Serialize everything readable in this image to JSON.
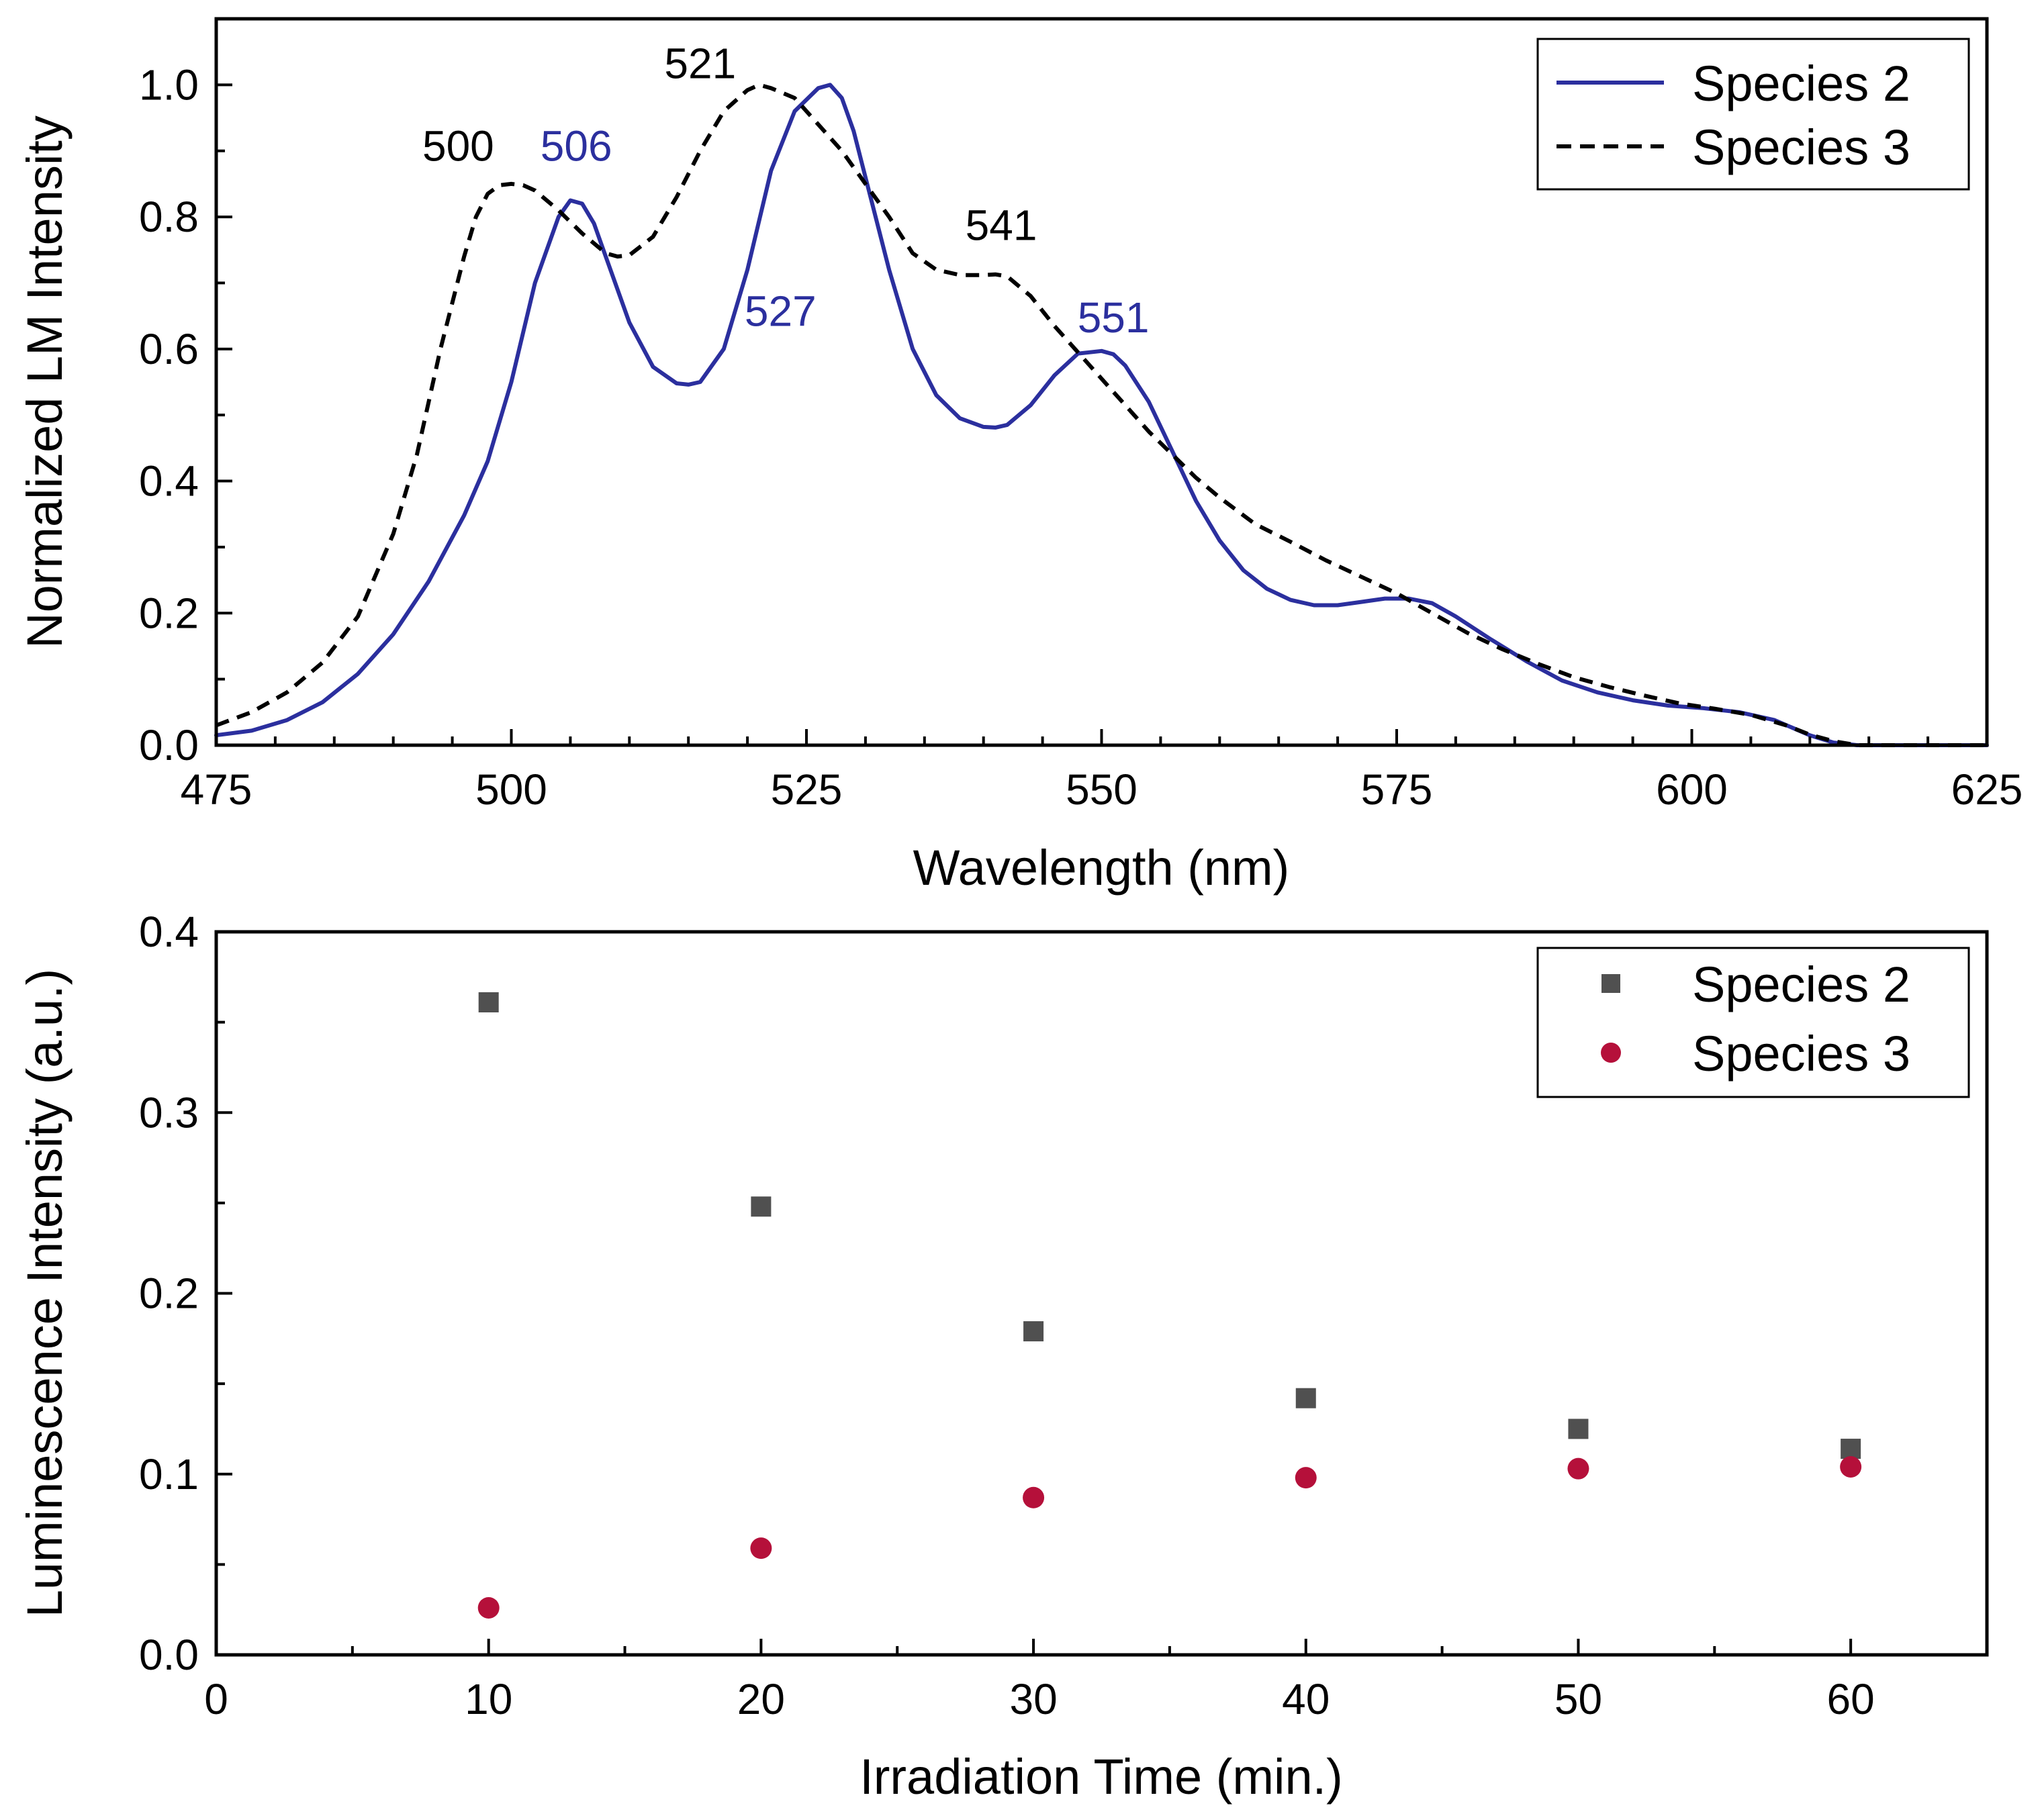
{
  "chart_data": [
    {
      "type": "line",
      "title": "",
      "xlabel": "Wavelength (nm)",
      "ylabel": "Normalized LM Intensity",
      "xlim": [
        475,
        625
      ],
      "ylim": [
        0.0,
        1.1
      ],
      "x_ticks": [
        475,
        500,
        525,
        550,
        575,
        600,
        625
      ],
      "x_tick_labels": [
        "475",
        "500",
        "525",
        "550",
        "575",
        "600",
        "625"
      ],
      "y_ticks": [
        0.0,
        0.2,
        0.4,
        0.6,
        0.8,
        1.0
      ],
      "y_tick_labels": [
        "0.0",
        "0.2",
        "0.4",
        "0.6",
        "0.8",
        "1.0"
      ],
      "grid": false,
      "legend_position": "top-right",
      "series": [
        {
          "name": "Species 2",
          "style": "solid",
          "color": "#2b2f9e",
          "x": [
            475,
            478,
            481,
            484,
            487,
            490,
            493,
            496,
            498,
            500,
            502,
            504,
            505,
            506,
            507,
            508,
            510,
            512,
            514,
            515,
            516,
            518,
            520,
            522,
            524,
            526,
            527,
            528,
            529,
            530,
            532,
            534,
            536,
            538,
            540,
            541,
            542,
            544,
            546,
            548,
            550,
            551,
            552,
            554,
            556,
            558,
            560,
            562,
            564,
            566,
            568,
            570,
            572,
            574,
            576,
            578,
            580,
            583,
            586,
            589,
            592,
            595,
            598,
            601,
            604,
            607,
            610,
            612,
            614,
            616,
            618,
            620,
            625
          ],
          "y": [
            0.015,
            0.022,
            0.038,
            0.065,
            0.108,
            0.168,
            0.248,
            0.348,
            0.43,
            0.55,
            0.7,
            0.8,
            0.825,
            0.82,
            0.79,
            0.74,
            0.64,
            0.573,
            0.548,
            0.546,
            0.55,
            0.6,
            0.72,
            0.87,
            0.96,
            0.995,
            1.0,
            0.98,
            0.93,
            0.86,
            0.72,
            0.6,
            0.53,
            0.495,
            0.482,
            0.481,
            0.485,
            0.515,
            0.56,
            0.593,
            0.597,
            0.592,
            0.575,
            0.52,
            0.445,
            0.37,
            0.31,
            0.265,
            0.237,
            0.22,
            0.212,
            0.212,
            0.217,
            0.222,
            0.222,
            0.215,
            0.195,
            0.16,
            0.127,
            0.098,
            0.08,
            0.068,
            0.06,
            0.056,
            0.05,
            0.038,
            0.015,
            0.004,
            0.0,
            0.0,
            0.0,
            0.0,
            0.0
          ]
        },
        {
          "name": "Species 3",
          "style": "dashed",
          "color": "#000000",
          "x": [
            475,
            478,
            481,
            484,
            487,
            490,
            492,
            494,
            496,
            497,
            498,
            499,
            500,
            501,
            502,
            504,
            506,
            508,
            509,
            510,
            512,
            514,
            516,
            518,
            520,
            521,
            522,
            524,
            526,
            528,
            530,
            532,
            534,
            536,
            538,
            540,
            541,
            542,
            544,
            546,
            548,
            550,
            552,
            554,
            556,
            558,
            560,
            563,
            566,
            569,
            572,
            575,
            578,
            581,
            584,
            587,
            590,
            593,
            596,
            599,
            602,
            605,
            608,
            610,
            612,
            614,
            616,
            620,
            625
          ],
          "y": [
            0.03,
            0.05,
            0.08,
            0.125,
            0.195,
            0.32,
            0.44,
            0.6,
            0.74,
            0.8,
            0.835,
            0.848,
            0.85,
            0.848,
            0.84,
            0.81,
            0.775,
            0.745,
            0.74,
            0.742,
            0.77,
            0.83,
            0.9,
            0.96,
            0.992,
            1.0,
            0.995,
            0.98,
            0.94,
            0.9,
            0.85,
            0.8,
            0.745,
            0.72,
            0.712,
            0.712,
            0.713,
            0.71,
            0.68,
            0.635,
            0.595,
            0.555,
            0.515,
            0.475,
            0.44,
            0.405,
            0.375,
            0.335,
            0.308,
            0.28,
            0.255,
            0.23,
            0.2,
            0.17,
            0.145,
            0.123,
            0.103,
            0.088,
            0.075,
            0.063,
            0.055,
            0.046,
            0.03,
            0.016,
            0.006,
            0.0,
            0.0,
            0.0,
            0.0
          ]
        }
      ],
      "annotations": [
        {
          "text": "500",
          "x": 495.5,
          "y": 0.885,
          "series": "Species 3",
          "color": "#000000"
        },
        {
          "text": "506",
          "x": 505.5,
          "y": 0.885,
          "series": "Species 2",
          "color": "#2b2f9e"
        },
        {
          "text": "521",
          "x": 516.0,
          "y": 1.01,
          "series": "Species 3",
          "color": "#000000"
        },
        {
          "text": "527",
          "x": 522.8,
          "y": 0.635,
          "series": "Species 2",
          "color": "#2b2f9e"
        },
        {
          "text": "541",
          "x": 541.5,
          "y": 0.765,
          "series": "Species 3",
          "color": "#000000"
        },
        {
          "text": "551",
          "x": 551.0,
          "y": 0.625,
          "series": "Species 2",
          "color": "#2b2f9e"
        }
      ]
    },
    {
      "type": "scatter",
      "title": "",
      "xlabel": "Irradiation Time (min.)",
      "ylabel": "Luminescence Intensity (a.u.)",
      "xlim": [
        0,
        65
      ],
      "ylim": [
        0.0,
        0.4
      ],
      "x_ticks": [
        0,
        10,
        20,
        30,
        40,
        50,
        60
      ],
      "x_tick_labels": [
        "0",
        "10",
        "20",
        "30",
        "40",
        "50",
        "60"
      ],
      "y_ticks": [
        0.0,
        0.1,
        0.2,
        0.3,
        0.4
      ],
      "y_tick_labels": [
        "0.0",
        "0.1",
        "0.2",
        "0.3",
        "0.4"
      ],
      "grid": false,
      "legend_position": "top-right",
      "series": [
        {
          "name": "Species 2",
          "marker": "square",
          "color": "#505050",
          "x": [
            10,
            20,
            30,
            40,
            50,
            60
          ],
          "y": [
            0.361,
            0.248,
            0.179,
            0.142,
            0.125,
            0.114
          ]
        },
        {
          "name": "Species 3",
          "marker": "circle",
          "color": "#b5103a",
          "x": [
            10,
            20,
            30,
            40,
            50,
            60
          ],
          "y": [
            0.026,
            0.059,
            0.087,
            0.098,
            0.103,
            0.104
          ]
        }
      ]
    }
  ]
}
